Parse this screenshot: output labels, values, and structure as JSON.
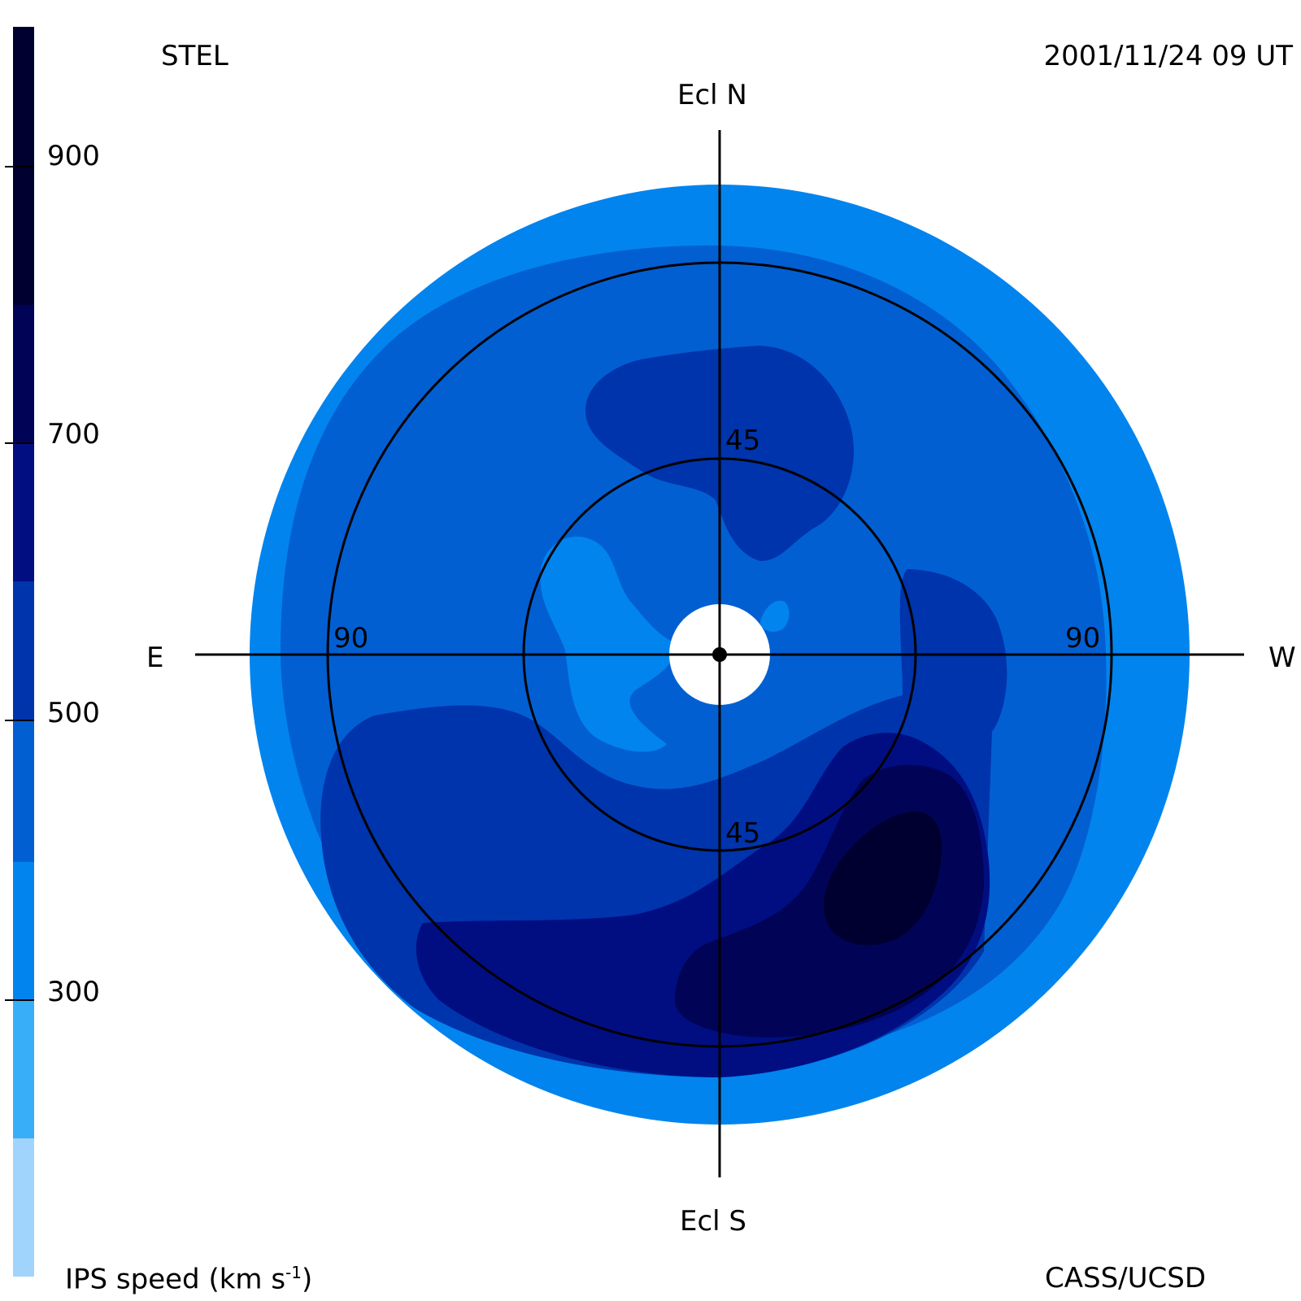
{
  "header": {
    "left": "STEL",
    "right": "2001/11/24 09 UT"
  },
  "footer": {
    "left_prefix": "IPS speed (km s",
    "left_sup": "-1",
    "left_suffix": ")",
    "right": "CASS/UCSD"
  },
  "directions": {
    "north": "Ecl N",
    "south": "Ecl S",
    "east": "E",
    "west": "W"
  },
  "ring_labels": {
    "inner_north": "45",
    "inner_south": "45",
    "outer_east": "90",
    "outer_west": "90"
  },
  "colorbar": {
    "ticks": [
      "900",
      "700",
      "500",
      "300"
    ],
    "bands": [
      "#a0d4fc",
      "#38aef8",
      "#0284ee",
      "#025fd2",
      "#0034ac",
      "#010e82",
      "#010456",
      "#000030"
    ]
  },
  "map_colors": {
    "c300": "#0284ee",
    "c400": "#025fd2",
    "c500": "#0034ac",
    "c600": "#010e82",
    "c700": "#010456",
    "c800": "#000030"
  }
}
